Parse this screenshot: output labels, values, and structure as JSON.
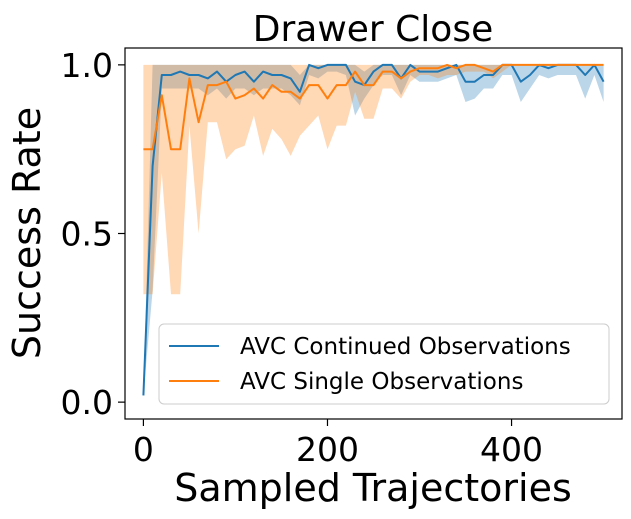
{
  "chart_data": {
    "type": "line",
    "title": "Drawer Close",
    "xlabel": "Sampled Trajectories",
    "ylabel": "Success Rate",
    "xlim": [
      -20,
      520
    ],
    "ylim": [
      -0.05,
      1.05
    ],
    "xticks": [
      0,
      200,
      400
    ],
    "xtick_labels": [
      "0",
      "200",
      "400"
    ],
    "yticks": [
      0.0,
      0.5,
      1.0
    ],
    "ytick_labels": [
      "0.0",
      "0.5",
      "1.0"
    ],
    "grid": false,
    "legend_position": "lower-right",
    "x": [
      0,
      10,
      20,
      30,
      40,
      50,
      60,
      70,
      80,
      90,
      100,
      110,
      120,
      130,
      140,
      150,
      160,
      170,
      180,
      190,
      200,
      210,
      220,
      230,
      240,
      250,
      260,
      270,
      280,
      290,
      300,
      310,
      320,
      330,
      340,
      350,
      360,
      370,
      380,
      390,
      400,
      410,
      420,
      430,
      440,
      450,
      460,
      470,
      480,
      490,
      500
    ],
    "series": [
      {
        "name": "AVC Continued Observations",
        "color": "#1f77b4",
        "values": [
          0.02,
          0.7,
          0.97,
          0.97,
          0.98,
          0.97,
          0.97,
          0.96,
          0.98,
          0.95,
          0.97,
          0.98,
          0.95,
          0.98,
          0.97,
          0.97,
          0.96,
          0.92,
          1.0,
          0.99,
          1.0,
          1.0,
          1.0,
          0.95,
          0.94,
          0.98,
          1.0,
          1.0,
          0.96,
          1.0,
          0.98,
          0.98,
          0.98,
          0.99,
          1.0,
          0.95,
          0.95,
          0.97,
          0.97,
          1.0,
          1.0,
          0.95,
          0.97,
          1.0,
          0.99,
          1.0,
          1.0,
          1.0,
          0.97,
          1.0,
          0.95
        ],
        "band_low": [
          0.02,
          0.33,
          0.93,
          0.93,
          0.93,
          0.93,
          0.93,
          0.91,
          0.93,
          0.9,
          0.93,
          0.93,
          0.91,
          0.93,
          0.93,
          0.93,
          0.91,
          0.88,
          0.97,
          0.96,
          0.98,
          0.98,
          0.97,
          0.85,
          0.9,
          0.94,
          0.97,
          0.97,
          0.91,
          0.97,
          0.95,
          0.95,
          0.95,
          0.96,
          0.97,
          0.89,
          0.9,
          0.93,
          0.93,
          0.97,
          0.97,
          0.89,
          0.93,
          0.97,
          0.96,
          0.97,
          0.97,
          0.97,
          0.9,
          0.97,
          0.89
        ],
        "band_high": [
          0.02,
          1.0,
          1.0,
          1.0,
          1.0,
          1.0,
          1.0,
          1.0,
          1.0,
          1.0,
          1.0,
          1.0,
          1.0,
          1.0,
          1.0,
          1.0,
          1.0,
          0.97,
          1.0,
          1.0,
          1.0,
          1.0,
          1.0,
          1.0,
          0.98,
          1.0,
          1.0,
          1.0,
          1.0,
          1.0,
          1.0,
          1.0,
          1.0,
          1.0,
          1.0,
          1.0,
          1.0,
          1.0,
          1.0,
          1.0,
          1.0,
          1.0,
          1.0,
          1.0,
          1.0,
          1.0,
          1.0,
          1.0,
          1.0,
          1.0,
          1.0
        ]
      },
      {
        "name": "AVC Single Observations",
        "color": "#ff7f0e",
        "values": [
          0.75,
          0.75,
          0.91,
          0.75,
          0.75,
          0.96,
          0.83,
          0.94,
          0.94,
          0.95,
          0.9,
          0.91,
          0.93,
          0.9,
          0.94,
          0.92,
          0.92,
          0.9,
          0.94,
          0.94,
          0.9,
          0.94,
          0.94,
          0.98,
          0.94,
          0.94,
          0.98,
          0.98,
          0.96,
          0.98,
          0.99,
          0.99,
          0.99,
          1.0,
          0.99,
          1.0,
          1.0,
          0.99,
          0.98,
          1.0,
          1.0,
          1.0,
          1.0,
          1.0,
          1.0,
          1.0,
          1.0,
          1.0,
          1.0,
          1.0,
          1.0
        ],
        "band_low": [
          0.32,
          0.32,
          0.68,
          0.32,
          0.32,
          0.82,
          0.5,
          0.83,
          0.83,
          0.72,
          0.75,
          0.76,
          0.85,
          0.73,
          0.81,
          0.78,
          0.73,
          0.79,
          0.82,
          0.85,
          0.75,
          0.82,
          0.82,
          0.92,
          0.84,
          0.84,
          0.93,
          0.93,
          0.9,
          0.95,
          0.97,
          0.97,
          0.96,
          0.97,
          0.97,
          0.98,
          0.98,
          0.98,
          0.96,
          0.98,
          1.0,
          1.0,
          1.0,
          1.0,
          1.0,
          1.0,
          1.0,
          1.0,
          1.0,
          1.0,
          1.0
        ],
        "band_high": [
          1.0,
          1.0,
          1.0,
          1.0,
          1.0,
          1.0,
          1.0,
          1.0,
          1.0,
          1.0,
          1.0,
          1.0,
          1.0,
          1.0,
          1.0,
          1.0,
          1.0,
          1.0,
          1.0,
          1.0,
          1.0,
          1.0,
          1.0,
          1.0,
          1.0,
          1.0,
          1.0,
          1.0,
          1.0,
          1.0,
          1.0,
          1.0,
          1.0,
          1.0,
          1.0,
          1.0,
          1.0,
          1.0,
          1.0,
          1.0,
          1.0,
          1.0,
          1.0,
          1.0,
          1.0,
          1.0,
          1.0,
          1.0,
          1.0,
          1.0,
          1.0
        ]
      }
    ]
  }
}
